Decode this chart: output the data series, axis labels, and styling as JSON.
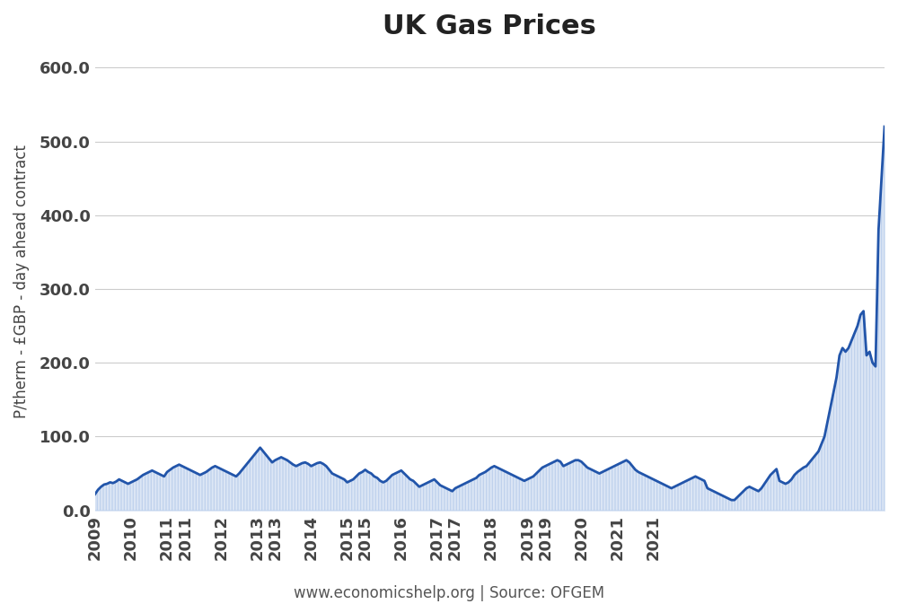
{
  "title": "UK Gas Prices",
  "ylabel": "P/therm - £GBP - day ahead contract",
  "footnote": "www.economicshelp.org | Source: OFGEM",
  "ylim": [
    0,
    620
  ],
  "yticks": [
    0.0,
    100.0,
    200.0,
    300.0,
    400.0,
    500.0,
    600.0
  ],
  "background_color": "#ffffff",
  "line_color": "#2255AA",
  "fill_color": "#dce6f5",
  "line_width": 2.0,
  "title_fontsize": 22,
  "label_fontsize": 12,
  "tick_fontsize": 13,
  "footnote_fontsize": 12,
  "values": [
    22,
    28,
    32,
    35,
    36,
    38,
    37,
    39,
    42,
    40,
    38,
    36,
    38,
    40,
    42,
    45,
    48,
    50,
    52,
    54,
    52,
    50,
    48,
    46,
    52,
    55,
    58,
    60,
    62,
    60,
    58,
    56,
    54,
    52,
    50,
    48,
    50,
    52,
    55,
    58,
    60,
    58,
    56,
    54,
    52,
    50,
    48,
    46,
    50,
    55,
    60,
    65,
    70,
    75,
    80,
    85,
    80,
    75,
    70,
    65,
    68,
    70,
    72,
    70,
    68,
    65,
    62,
    60,
    62,
    64,
    65,
    63,
    60,
    62,
    64,
    65,
    63,
    60,
    55,
    50,
    48,
    46,
    44,
    42,
    38,
    40,
    42,
    46,
    50,
    52,
    55,
    52,
    50,
    46,
    44,
    40,
    38,
    40,
    44,
    48,
    50,
    52,
    54,
    50,
    46,
    42,
    40,
    36,
    32,
    34,
    36,
    38,
    40,
    42,
    38,
    34,
    32,
    30,
    28,
    26,
    30,
    32,
    34,
    36,
    38,
    40,
    42,
    44,
    48,
    50,
    52,
    55,
    58,
    60,
    58,
    56,
    54,
    52,
    50,
    48,
    46,
    44,
    42,
    40,
    42,
    44,
    46,
    50,
    54,
    58,
    60,
    62,
    64,
    66,
    68,
    66,
    60,
    62,
    64,
    66,
    68,
    68,
    66,
    62,
    58,
    56,
    54,
    52,
    50,
    52,
    54,
    56,
    58,
    60,
    62,
    64,
    66,
    68,
    65,
    60,
    55,
    52,
    50,
    48,
    46,
    44,
    42,
    40,
    38,
    36,
    34,
    32,
    30,
    32,
    34,
    36,
    38,
    40,
    42,
    44,
    46,
    44,
    42,
    40,
    30,
    28,
    26,
    24,
    22,
    20,
    18,
    16,
    14,
    14,
    18,
    22,
    26,
    30,
    32,
    30,
    28,
    26,
    30,
    36,
    42,
    48,
    52,
    56,
    40,
    38,
    36,
    38,
    42,
    48,
    52,
    55,
    58,
    60,
    65,
    70,
    75,
    80,
    90,
    100,
    120,
    140,
    160,
    180,
    210,
    220,
    215,
    220,
    230,
    240,
    250,
    265,
    270,
    210,
    215,
    200,
    195,
    380,
    450,
    520
  ],
  "xtick_labels": [
    "2009",
    "2010",
    "2011",
    "2011",
    "2012",
    "2013",
    "2013",
    "2014",
    "2015",
    "2015",
    "2016",
    "2017",
    "2017",
    "2018",
    "2019",
    "2019",
    "2020",
    "2021",
    "2021"
  ],
  "xtick_positions_frac": [
    0,
    12,
    24,
    30,
    42,
    54,
    60,
    72,
    84,
    90,
    102,
    114,
    120,
    132,
    144,
    150,
    162,
    174,
    186
  ]
}
